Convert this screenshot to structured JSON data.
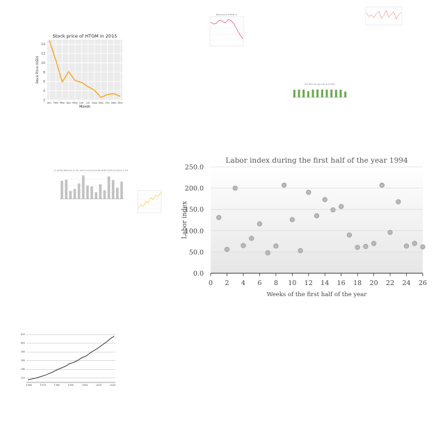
{
  "chart_data": [
    {
      "id": "htgm",
      "type": "line",
      "title": "Stock price of HTGM in 2015",
      "xlabel": "Month",
      "ylabel": "Stock Price (USD)",
      "categories": [
        "Jan",
        "Feb",
        "Mar",
        "Apr",
        "May",
        "Jun",
        "Jul",
        "Aug",
        "Sep",
        "Oct",
        "Nov",
        "Dec"
      ],
      "values": [
        14.8,
        10.6,
        5.9,
        8.1,
        6.2,
        5.8,
        4.9,
        4.1,
        2.6,
        3.2,
        3.4,
        2.8
      ],
      "ylim": [
        2,
        15
      ],
      "yticks": [
        "2",
        "4",
        "6",
        "8",
        "10",
        "12",
        "14"
      ],
      "grid": true,
      "colors": {
        "line": "#f5a623",
        "plot_bg": "#ebebeb",
        "grid": "#ffffff"
      }
    },
    {
      "id": "labor",
      "type": "scatter",
      "title": "Labor index during the first half of the year 1994",
      "xlabel": "Weeks of the first half of the year",
      "ylabel": "Labor index",
      "xticks": [
        "0",
        "2",
        "4",
        "6",
        "8",
        "10",
        "12",
        "14",
        "16",
        "18",
        "20",
        "22",
        "24",
        "26"
      ],
      "yticks": [
        "0.0",
        "50.0",
        "100.0",
        "150.0",
        "200.0",
        "250.0"
      ],
      "xlim": [
        0,
        26
      ],
      "ylim": [
        0,
        250
      ],
      "points": [
        {
          "x": 1,
          "y": 131
        },
        {
          "x": 2,
          "y": 56
        },
        {
          "x": 3,
          "y": 200
        },
        {
          "x": 4,
          "y": 65
        },
        {
          "x": 5,
          "y": 82
        },
        {
          "x": 6,
          "y": 116
        },
        {
          "x": 7,
          "y": 48
        },
        {
          "x": 8,
          "y": 64
        },
        {
          "x": 9,
          "y": 207
        },
        {
          "x": 10,
          "y": 126
        },
        {
          "x": 11,
          "y": 53
        },
        {
          "x": 12,
          "y": 190
        },
        {
          "x": 13,
          "y": 135
        },
        {
          "x": 14,
          "y": 173
        },
        {
          "x": 15,
          "y": 149
        },
        {
          "x": 16,
          "y": 157
        },
        {
          "x": 17,
          "y": 90
        },
        {
          "x": 18,
          "y": 61
        },
        {
          "x": 19,
          "y": 63
        },
        {
          "x": 20,
          "y": 70
        },
        {
          "x": 21,
          "y": 207
        },
        {
          "x": 22,
          "y": 96
        },
        {
          "x": 23,
          "y": 168
        },
        {
          "x": 24,
          "y": 64
        },
        {
          "x": 25,
          "y": 70
        },
        {
          "x": 26,
          "y": 62
        }
      ],
      "grid": true,
      "colors": {
        "point": "#b9b9b9",
        "point_stroke": "#8e8e8e",
        "grid": "#dddddd"
      }
    },
    {
      "id": "tiny_pink",
      "type": "line",
      "title": "Stock price of FXAL in",
      "values": [
        6.5,
        6.0,
        6.2,
        7.0,
        6.8,
        6.3,
        7.2,
        6.9,
        6.0,
        4.5,
        3.2,
        2.0
      ],
      "ylim": [
        0,
        8
      ],
      "colors": {
        "line": "#e04070"
      }
    },
    {
      "id": "tiny_red_top",
      "type": "line",
      "values": [
        6.0,
        5.4,
        5.7,
        5.2,
        5.9,
        6.3,
        5.1,
        5.6,
        6.4,
        5.3,
        5.8,
        6.2,
        5.0,
        5.7,
        6.1
      ],
      "ylim": [
        4,
        7
      ],
      "colors": {
        "line": "#e06060"
      }
    },
    {
      "id": "tiny_green_bars",
      "type": "bar",
      "title": "Box office by age (US) as of 2015",
      "values": [
        68,
        70,
        69,
        55,
        70,
        71,
        70,
        69,
        70,
        68,
        69,
        52
      ],
      "ylim": [
        0,
        100
      ],
      "colors": {
        "bar": "#6aa84f"
      }
    },
    {
      "id": "tiny_gray_bars",
      "type": "bar",
      "title": "Air quality Measures on the national environmental health tracking network in 2005",
      "values": [
        55,
        58,
        24,
        30,
        47,
        71,
        40,
        38,
        20,
        44,
        26,
        68,
        57,
        34,
        52
      ],
      "ylim": [
        0,
        80
      ],
      "colors": {
        "bar": "#c2c2c2"
      }
    },
    {
      "id": "tiny_yellow",
      "type": "line",
      "values": [
        1.0,
        1.8,
        1.4,
        2.6,
        2.2,
        3.4,
        3.0,
        4.0,
        3.6,
        4.6
      ],
      "ylim": [
        0,
        5
      ],
      "colors": {
        "line": "#f4c430"
      }
    },
    {
      "id": "tiny_black",
      "type": "line",
      "xticks": [
        "1960",
        "1970",
        "1980",
        "1990",
        "2000",
        "2010",
        "2020"
      ],
      "yticks": [
        "320",
        "340",
        "360",
        "380",
        "400",
        "420"
      ],
      "xlim": [
        1958,
        2022
      ],
      "ylim": [
        310,
        425
      ],
      "x": [
        1959,
        1962,
        1965,
        1968,
        1971,
        1974,
        1977,
        1980,
        1983,
        1986,
        1989,
        1992,
        1995,
        1998,
        2001,
        2004,
        2007,
        2010,
        2013,
        2016,
        2019,
        2021
      ],
      "values": [
        316,
        318,
        320,
        323,
        326,
        330,
        334,
        339,
        343,
        347,
        353,
        356,
        361,
        367,
        371,
        378,
        384,
        390,
        397,
        404,
        412,
        416
      ],
      "colors": {
        "line": "#222222"
      }
    }
  ]
}
